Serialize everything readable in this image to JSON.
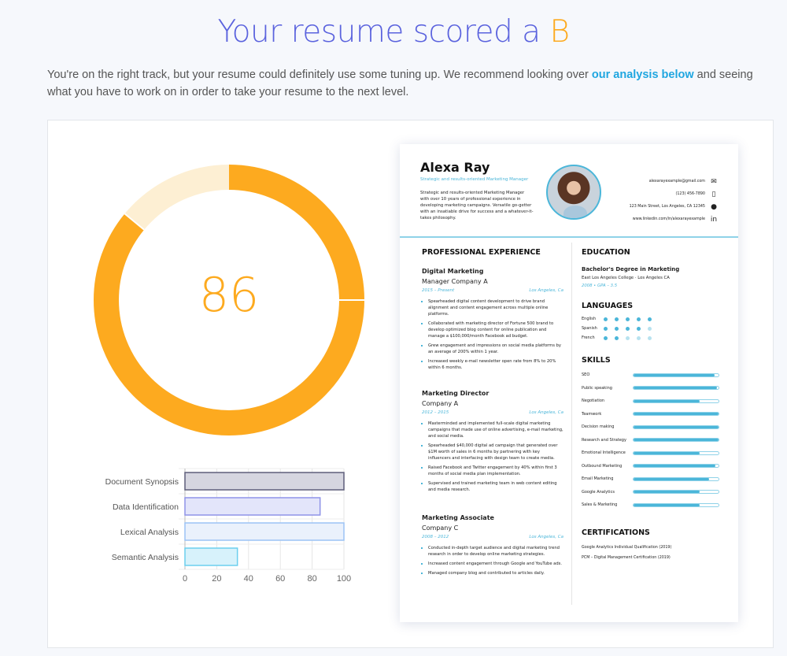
{
  "header": {
    "title_prefix": "Your resume scored a ",
    "grade": "B",
    "intro_before": "You're on the right track, but your resume could definitely use some tuning up. We recommend looking over ",
    "intro_link": "our analysis below",
    "intro_after": " and seeing what you have to work on in order to take your resume to the next level."
  },
  "colors": {
    "accent": "#5b63de",
    "grade": "#fdaa1f",
    "link": "#1fa6e0",
    "donut_fill": "#fdaa1f",
    "donut_rest": "#fdefd3",
    "resume_accent": "#4bb6d9"
  },
  "score": {
    "value": 86,
    "max": 100
  },
  "chart_data": {
    "type": "bar",
    "orientation": "horizontal",
    "categories": [
      "Document Synopsis",
      "Data Identification",
      "Lexical Analysis",
      "Semantic Analysis"
    ],
    "values": [
      100,
      85,
      100,
      33
    ],
    "xlim": [
      0,
      100
    ],
    "xticks": [
      0,
      20,
      40,
      60,
      80,
      100
    ],
    "grid": true,
    "colors": [
      {
        "fill": "#d6d6e0",
        "stroke": "#5e5e7a"
      },
      {
        "fill": "#e3e5fa",
        "stroke": "#8f93e8"
      },
      {
        "fill": "#eaf1fc",
        "stroke": "#9cc3f5"
      },
      {
        "fill": "#d7f2fb",
        "stroke": "#6ccfee"
      }
    ]
  },
  "resume": {
    "name": "Alexa Ray",
    "tagline": "Strategic and results-oriented Marketing Manager",
    "summary": "Strategic and results-oriented Marketing Manager with over 10 years of professional experience in developing marketing campaigns. Versatile go-getter with an insatiable drive for success and a whatever-it-takes philosophy.",
    "contact": [
      {
        "text": "alexarayexample@gmail.com",
        "icon": "envelope-icon",
        "glyph": "✉"
      },
      {
        "text": "(123) 456-7890",
        "icon": "phone-icon",
        "glyph": "▯"
      },
      {
        "text": "123 Main Street, Los Angeles, CA 12345",
        "icon": "location-pin-icon",
        "glyph": "●"
      },
      {
        "text": "www.linkedin.com/in/alexarayexample",
        "icon": "linkedin-icon",
        "glyph": "in"
      }
    ],
    "experience_heading": "PROFESSIONAL EXPERIENCE",
    "jobs": [
      {
        "title": "Digital Marketing",
        "company": "Manager Company A",
        "dates": "2015 – Present",
        "location": "Los Angeles, Ca",
        "bullets": [
          "Spearheaded digital content development to drive brand alignment and content engagement across multiple online platforms.",
          "Collaborated with marketing director of Fortune 500 brand to develop optimized blog content for online publication and manage a $100,000/month Facebook ad budget.",
          "Grew engagement and impressions on social media platforms by an average of 200% within 1 year.",
          "Increased weekly e-mail newsletter open rate from 8% to 20% within 6 months."
        ]
      },
      {
        "title": "Marketing Director",
        "company": "Company A",
        "dates": "2012 – 2015",
        "location": "Los Angeles, Ca",
        "bullets": [
          "Masterminded and implemented full-scale digital marketing campaigns that made use of online advertising, e-mail marketing, and social media.",
          "Spearheaded $40,000 digital ad campaign that generated over $1M worth of sales in 6 months by partnering with key influencers and interfacing with design team to create media.",
          "Raised Facebook and Twitter engagement by 40% within first 3 months of social media plan implementation.",
          "Supervised and trained marketing team in web content editing and media research."
        ]
      },
      {
        "title": "Marketing Associate",
        "company": "Company C",
        "dates": "2008 – 2012",
        "location": "Los Angeles, Ca",
        "bullets": [
          "Conducted in-depth target audience and digital marketing trend research in order to develop online marketing strategies.",
          "Increased content engagement through Google and YouTube ads.",
          "Managed company blog and contributed to articles daily."
        ]
      }
    ],
    "education_heading": "EDUCATION",
    "degree": "Bachelor's Degree in Marketing",
    "school": "East Los Angeles College  ·  Los Angeles CA",
    "edu_meta": "2008 • GPA – 3.5",
    "languages_heading": "LANGUAGES",
    "languages": [
      {
        "name": "English",
        "level": 5
      },
      {
        "name": "Spanish",
        "level": 4
      },
      {
        "name": "French",
        "level": 2
      }
    ],
    "skills_heading": "SKILLS",
    "skills": [
      {
        "name": "SEO",
        "level": 95
      },
      {
        "name": "Public speaking",
        "level": 98
      },
      {
        "name": "Negotiation",
        "level": 78
      },
      {
        "name": "Teamwork",
        "level": 100
      },
      {
        "name": "Decision making",
        "level": 100
      },
      {
        "name": "Research and Strategy",
        "level": 100
      },
      {
        "name": "Emotional Intelligence",
        "level": 78
      },
      {
        "name": "Outbound Marketing",
        "level": 96
      },
      {
        "name": "Email Marketing",
        "level": 89
      },
      {
        "name": "Google Analytics",
        "level": 78
      },
      {
        "name": "Sales & Marketing",
        "level": 78
      }
    ],
    "certifications_heading": "CERTIFICATIONS",
    "certifications": [
      "Google Analytics Individual Qualification (2019)",
      "PCM – Digital Management Certification (2019)"
    ]
  }
}
